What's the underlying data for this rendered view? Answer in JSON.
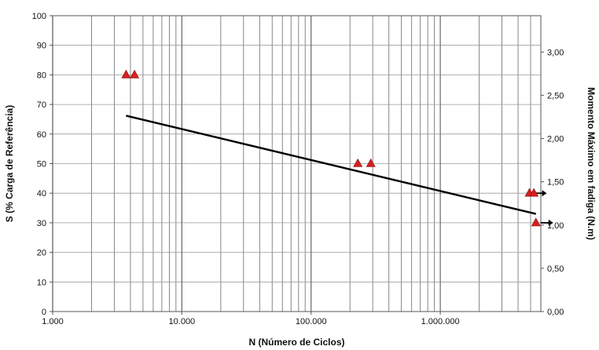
{
  "chart_data": {
    "type": "scatter",
    "title": "",
    "xlabel": "N (Número de Ciclos)",
    "ylabel": "S (% Carga de Referência)",
    "y2label": "Momento Máximo  em fadiga (N.m)",
    "x_scale": "log",
    "xlim": [
      1000,
      6000000
    ],
    "ylim": [
      0,
      100
    ],
    "y2lim": [
      0,
      3.42
    ],
    "grid": true,
    "legend": "none",
    "x_ticks": [
      1000,
      10000,
      100000,
      1000000
    ],
    "x_tick_labels": [
      "1.000",
      "10.000",
      "100.000",
      "1.000.000"
    ],
    "y_ticks": [
      0,
      10,
      20,
      30,
      40,
      50,
      60,
      70,
      80,
      90,
      100
    ],
    "y_tick_labels": [
      "0",
      "10",
      "20",
      "30",
      "40",
      "50",
      "60",
      "70",
      "80",
      "90",
      "100"
    ],
    "y2_ticks": [
      0,
      0.5,
      1.0,
      1.5,
      2.0,
      2.5,
      3.0
    ],
    "y2_tick_labels": [
      "0,00",
      "0,50",
      "1,00",
      "1,50",
      "2,00",
      "2,50",
      "3,00"
    ],
    "series": [
      {
        "marker": "triangle",
        "color": "#d42020",
        "points": [
          {
            "x": 3700,
            "y": 80
          },
          {
            "x": 4300,
            "y": 80
          },
          {
            "x": 230000,
            "y": 50
          },
          {
            "x": 290000,
            "y": 50
          },
          {
            "x": 4900000,
            "y": 40,
            "runout": true
          },
          {
            "x": 5300000,
            "y": 40
          },
          {
            "x": 5500000,
            "y": 30,
            "runout": true
          }
        ]
      },
      {
        "type": "line",
        "color": "#000000",
        "points": [
          {
            "x": 3700,
            "y": 66.2
          },
          {
            "x": 5500000,
            "y": 33.0
          }
        ]
      }
    ]
  }
}
